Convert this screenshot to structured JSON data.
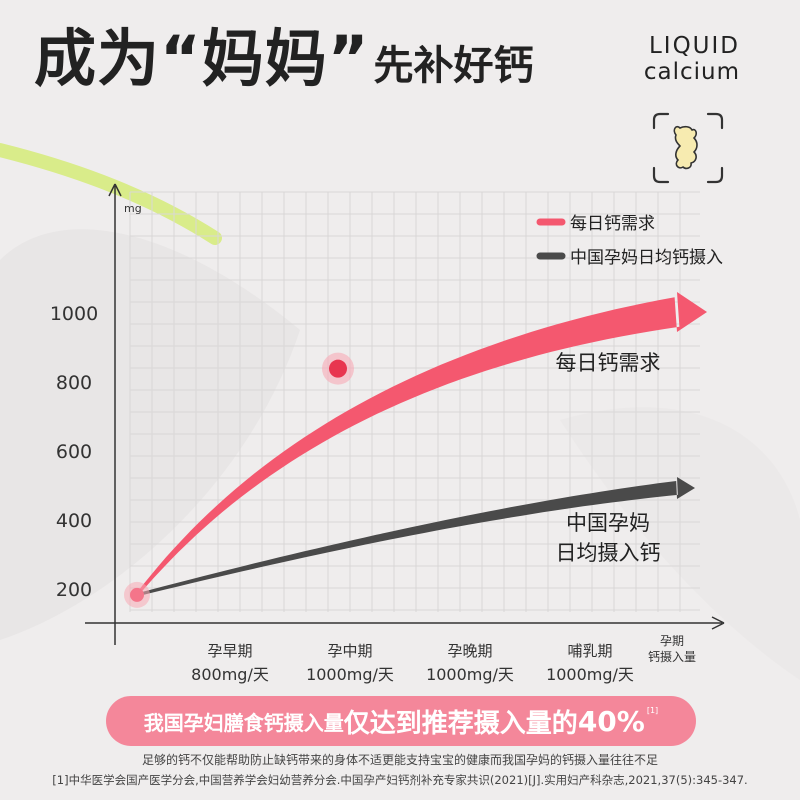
{
  "header": {
    "title_main": "成为“妈妈”",
    "title_sub": "先补好钙",
    "brand_line1": "LIQUID",
    "brand_line2": "calcium"
  },
  "icon": {
    "name": "bone-joint-icon"
  },
  "colors": {
    "pink": "#f4586f",
    "gray": "#4a4a4a",
    "banner": "#f4879a",
    "lime": "#d9ec8a"
  },
  "chart_data": {
    "type": "area",
    "ylabel": "mg",
    "xlabel": "孕期",
    "xlabel_line2": "钙摄入量",
    "y_ticks": [
      200,
      400,
      600,
      800,
      1000
    ],
    "categories": [
      {
        "stage": "孕早期",
        "req": "800mg/天"
      },
      {
        "stage": "孕中期",
        "req": "1000mg/天"
      },
      {
        "stage": "孕晚期",
        "req": "1000mg/天"
      },
      {
        "stage": "哺乳期",
        "req": "1000mg/天"
      }
    ],
    "series": [
      {
        "name": "每日钙需求",
        "label_lines": [
          "每日钙需求"
        ],
        "color": "#f4586f",
        "points": [
          [
            0,
            180
          ],
          [
            1.5,
            830
          ],
          [
            4.5,
            1000
          ]
        ]
      },
      {
        "name": "中国孕妈日均钙摄入",
        "label_lines": [
          "中国孕妈",
          "日均摄入钙"
        ],
        "color": "#4a4a4a",
        "points": [
          [
            0,
            180
          ],
          [
            2.7,
            420
          ],
          [
            4.5,
            490
          ]
        ]
      }
    ],
    "legend": {
      "position": "top-right"
    },
    "grid": true
  },
  "banner": {
    "part1": "我国孕妇膳食钙摄入量",
    "part2": "仅达到推荐摄入量的",
    "part3": "40%",
    "ref": "[1]"
  },
  "footer": {
    "note": "足够的钙不仅能帮助防止缺钙带来的身体不适更能支持宝宝的健康而我国孕妈的钙摄入量往往不足",
    "reference": "[1]中华医学会国产医学分会,中国营养学会妇幼营养分会.中国孕产妇钙剂补充专家共识(2021)[J].实用妇产科杂志,2021,37(5):345-347."
  }
}
